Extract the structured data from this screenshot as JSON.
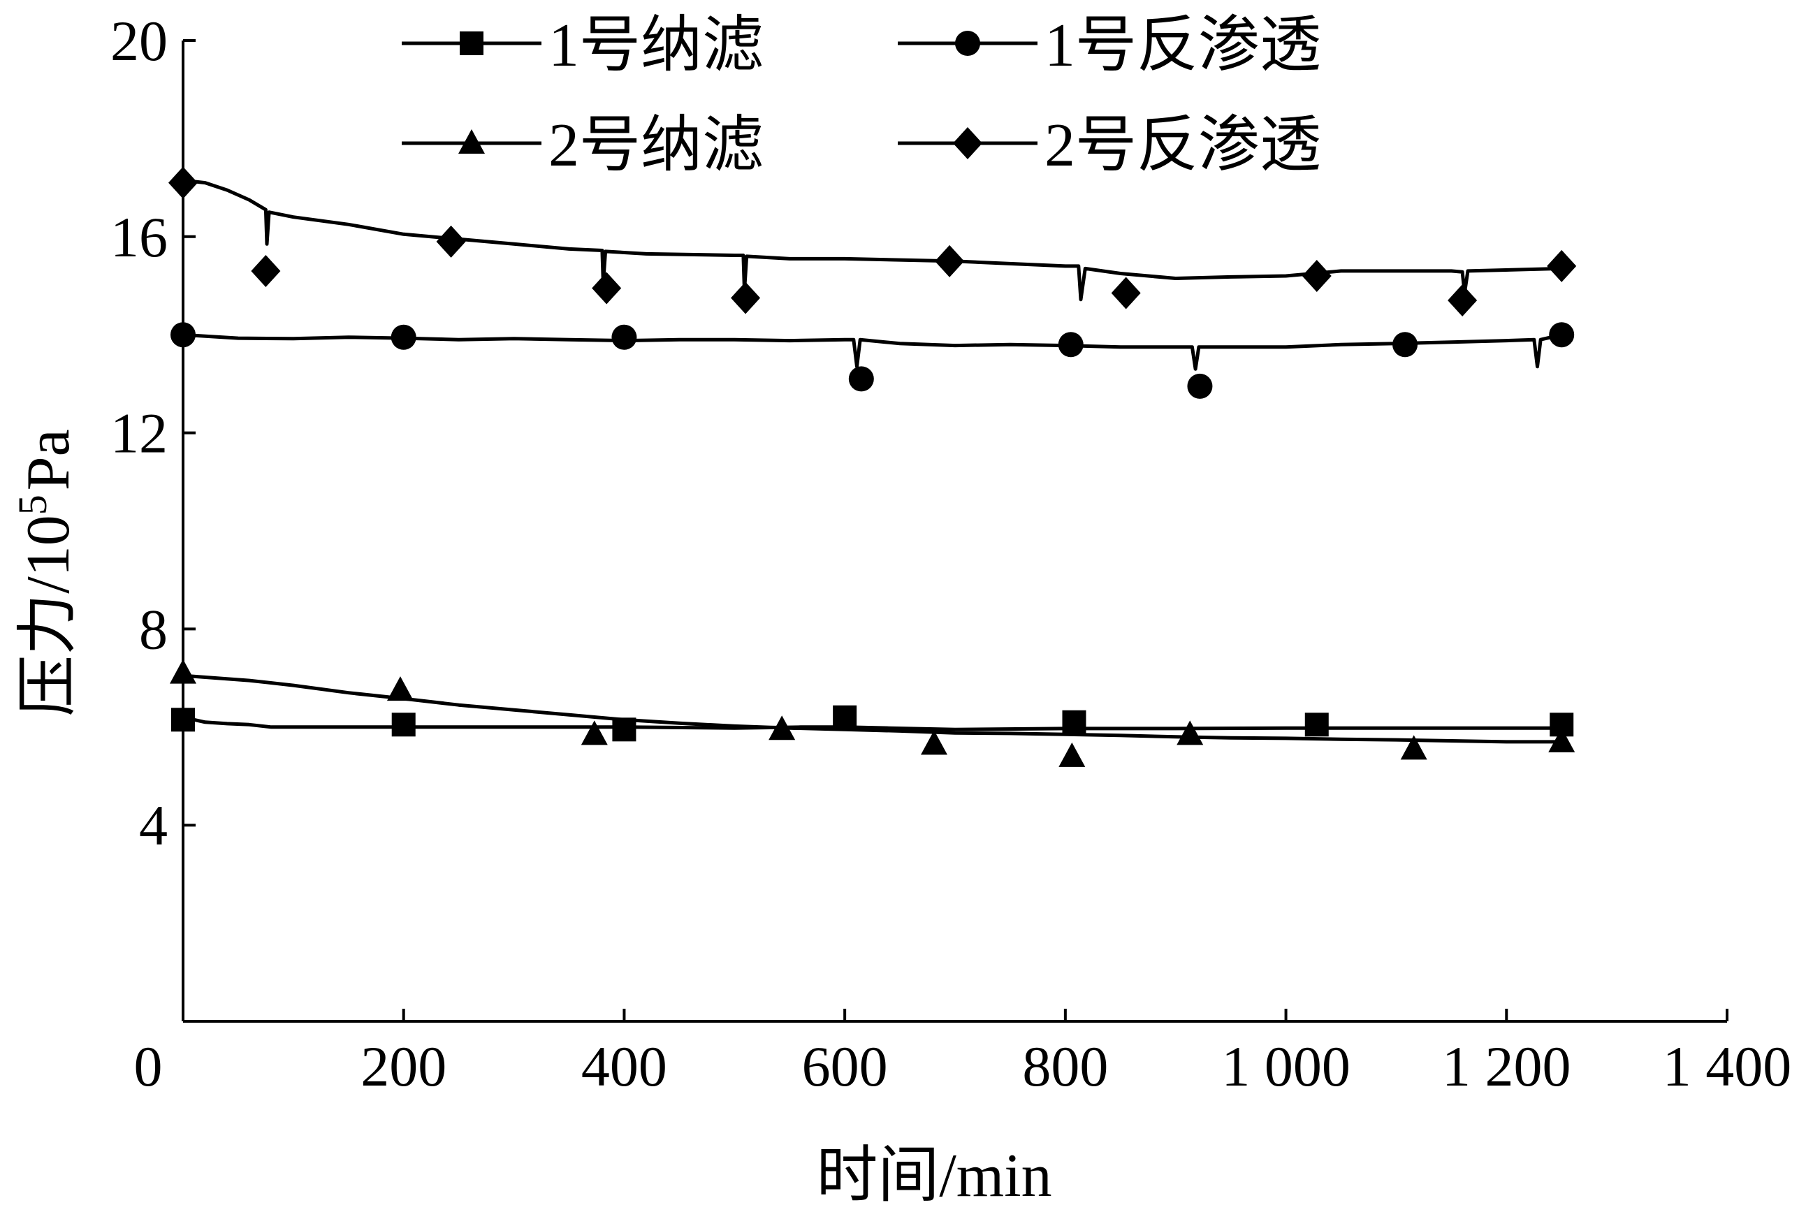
{
  "chart_data": {
    "type": "line",
    "title": "",
    "xlabel": "时间/min",
    "ylabel_prefix": "压力/10",
    "ylabel_exponent": "5",
    "ylabel_suffix": "Pa",
    "xlim": [
      0,
      1400
    ],
    "ylim": [
      0,
      20
    ],
    "x_ticks": [
      0,
      200,
      400,
      600,
      800,
      1000,
      1200,
      1400
    ],
    "x_tick_labels": [
      "0",
      "200",
      "400",
      "600",
      "800",
      "1 000",
      "1 200",
      "1 400"
    ],
    "y_ticks": [
      4,
      8,
      12,
      16,
      20
    ],
    "y_tick_labels": [
      "4",
      "8",
      "12",
      "16",
      "20"
    ],
    "legend_position": "top",
    "grid": false,
    "series": [
      {
        "name": "1号纳滤",
        "marker": "square",
        "line": [
          [
            0,
            6.15
          ],
          [
            10,
            6.15
          ],
          [
            20,
            6.1
          ],
          [
            40,
            6.07
          ],
          [
            60,
            6.05
          ],
          [
            80,
            6.0
          ],
          [
            100,
            6.0
          ],
          [
            200,
            6.0
          ],
          [
            300,
            6.0
          ],
          [
            400,
            6.0
          ],
          [
            500,
            5.98
          ],
          [
            560,
            6.0
          ],
          [
            600,
            6.0
          ],
          [
            640,
            5.98
          ],
          [
            700,
            5.95
          ],
          [
            800,
            5.97
          ],
          [
            900,
            5.97
          ],
          [
            1000,
            5.98
          ],
          [
            1100,
            5.98
          ],
          [
            1200,
            5.98
          ],
          [
            1250,
            5.98
          ]
        ],
        "markers": [
          [
            0,
            6.15
          ],
          [
            200,
            6.05
          ],
          [
            400,
            5.95
          ],
          [
            600,
            6.2
          ],
          [
            808,
            6.1
          ],
          [
            1028,
            6.05
          ],
          [
            1250,
            6.05
          ]
        ]
      },
      {
        "name": "1号反渗透",
        "marker": "circle",
        "line": [
          [
            0,
            14.0
          ],
          [
            50,
            13.93
          ],
          [
            100,
            13.92
          ],
          [
            150,
            13.95
          ],
          [
            200,
            13.93
          ],
          [
            250,
            13.9
          ],
          [
            300,
            13.92
          ],
          [
            350,
            13.9
          ],
          [
            400,
            13.88
          ],
          [
            450,
            13.9
          ],
          [
            500,
            13.9
          ],
          [
            550,
            13.88
          ],
          [
            600,
            13.9
          ],
          [
            608,
            13.9
          ],
          [
            611,
            13.35
          ],
          [
            614,
            13.9
          ],
          [
            650,
            13.82
          ],
          [
            700,
            13.78
          ],
          [
            750,
            13.8
          ],
          [
            800,
            13.78
          ],
          [
            850,
            13.75
          ],
          [
            900,
            13.75
          ],
          [
            915,
            13.75
          ],
          [
            918,
            13.3
          ],
          [
            921,
            13.75
          ],
          [
            1000,
            13.75
          ],
          [
            1050,
            13.8
          ],
          [
            1100,
            13.82
          ],
          [
            1150,
            13.85
          ],
          [
            1200,
            13.88
          ],
          [
            1225,
            13.9
          ],
          [
            1228,
            13.35
          ],
          [
            1231,
            13.9
          ],
          [
            1250,
            14.0
          ]
        ],
        "markers": [
          [
            0,
            14.0
          ],
          [
            200,
            13.95
          ],
          [
            400,
            13.95
          ],
          [
            615,
            13.1
          ],
          [
            805,
            13.8
          ],
          [
            922,
            12.95
          ],
          [
            1108,
            13.8
          ],
          [
            1250,
            14.0
          ]
        ]
      },
      {
        "name": "2号纳滤",
        "marker": "triangle",
        "line": [
          [
            0,
            7.05
          ],
          [
            30,
            7.0
          ],
          [
            60,
            6.95
          ],
          [
            100,
            6.85
          ],
          [
            150,
            6.7
          ],
          [
            200,
            6.58
          ],
          [
            250,
            6.45
          ],
          [
            300,
            6.35
          ],
          [
            350,
            6.25
          ],
          [
            400,
            6.15
          ],
          [
            450,
            6.08
          ],
          [
            500,
            6.02
          ],
          [
            550,
            5.98
          ],
          [
            600,
            5.95
          ],
          [
            650,
            5.92
          ],
          [
            700,
            5.88
          ],
          [
            750,
            5.87
          ],
          [
            800,
            5.85
          ],
          [
            850,
            5.83
          ],
          [
            900,
            5.8
          ],
          [
            950,
            5.78
          ],
          [
            1000,
            5.77
          ],
          [
            1050,
            5.75
          ],
          [
            1100,
            5.74
          ],
          [
            1150,
            5.72
          ],
          [
            1200,
            5.7
          ],
          [
            1250,
            5.7
          ]
        ],
        "markers": [
          [
            0,
            7.1
          ],
          [
            197,
            6.75
          ],
          [
            373,
            5.85
          ],
          [
            543,
            5.95
          ],
          [
            681,
            5.65
          ],
          [
            806,
            5.4
          ],
          [
            913,
            5.85
          ],
          [
            1116,
            5.55
          ],
          [
            1250,
            5.7
          ]
        ]
      },
      {
        "name": "2号反渗透",
        "marker": "diamond",
        "line": [
          [
            0,
            17.15
          ],
          [
            20,
            17.1
          ],
          [
            40,
            16.95
          ],
          [
            60,
            16.75
          ],
          [
            75,
            16.55
          ],
          [
            76,
            15.85
          ],
          [
            78,
            16.5
          ],
          [
            100,
            16.4
          ],
          [
            150,
            16.25
          ],
          [
            200,
            16.05
          ],
          [
            250,
            15.95
          ],
          [
            300,
            15.85
          ],
          [
            350,
            15.75
          ],
          [
            380,
            15.72
          ],
          [
            381,
            15.05
          ],
          [
            383,
            15.7
          ],
          [
            420,
            15.65
          ],
          [
            500,
            15.62
          ],
          [
            508,
            15.62
          ],
          [
            509,
            14.9
          ],
          [
            511,
            15.6
          ],
          [
            550,
            15.55
          ],
          [
            600,
            15.55
          ],
          [
            700,
            15.5
          ],
          [
            800,
            15.4
          ],
          [
            812,
            15.4
          ],
          [
            814,
            14.72
          ],
          [
            818,
            15.35
          ],
          [
            850,
            15.25
          ],
          [
            900,
            15.15
          ],
          [
            950,
            15.18
          ],
          [
            1000,
            15.2
          ],
          [
            1050,
            15.3
          ],
          [
            1100,
            15.3
          ],
          [
            1150,
            15.3
          ],
          [
            1160,
            15.28
          ],
          [
            1162,
            14.85
          ],
          [
            1165,
            15.3
          ],
          [
            1250,
            15.35
          ]
        ],
        "markers": [
          [
            0,
            17.1
          ],
          [
            75,
            15.3
          ],
          [
            243,
            15.9
          ],
          [
            384,
            14.95
          ],
          [
            510,
            14.75
          ],
          [
            695,
            15.5
          ],
          [
            855,
            14.85
          ],
          [
            1028,
            15.2
          ],
          [
            1160,
            14.7
          ],
          [
            1250,
            15.4
          ]
        ]
      }
    ]
  }
}
